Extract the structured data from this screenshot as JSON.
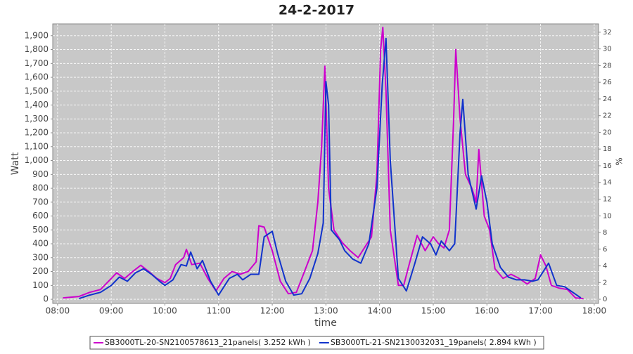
{
  "chart_data": {
    "type": "line",
    "title": "24-2-2017",
    "x_label": "time",
    "y_label": "Watt",
    "y2_label": "%",
    "xlim": [
      7.91,
      18.08
    ],
    "ylim": [
      -30,
      1985
    ],
    "y2lim": [
      -0.5,
      33
    ],
    "grid": true,
    "legend": "bottom",
    "xticks": [
      {
        "value": 8,
        "label": "08:00"
      },
      {
        "value": 9,
        "label": "09:00"
      },
      {
        "value": 10,
        "label": "10:00"
      },
      {
        "value": 11,
        "label": "11:00"
      },
      {
        "value": 12,
        "label": "12:00"
      },
      {
        "value": 13,
        "label": "13:00"
      },
      {
        "value": 14,
        "label": "14:00"
      },
      {
        "value": 15,
        "label": "15:00"
      },
      {
        "value": 16,
        "label": "16:00"
      },
      {
        "value": 17,
        "label": "17:00"
      },
      {
        "value": 18,
        "label": "18:00"
      }
    ],
    "yticks": [
      0,
      100,
      200,
      300,
      400,
      500,
      600,
      700,
      800,
      900,
      {
        "value": 1000,
        "label": "1,000"
      },
      {
        "value": 1100,
        "label": "1,100"
      },
      {
        "value": 1200,
        "label": "1,200"
      },
      {
        "value": 1300,
        "label": "1,300"
      },
      {
        "value": 1400,
        "label": "1,400"
      },
      {
        "value": 1500,
        "label": "1,500"
      },
      {
        "value": 1600,
        "label": "1,600"
      },
      {
        "value": 1700,
        "label": "1,700"
      },
      {
        "value": 1800,
        "label": "1,800"
      },
      {
        "value": 1900,
        "label": "1,900"
      }
    ],
    "y2ticks": [
      0,
      2,
      4,
      6,
      8,
      10,
      12,
      14,
      16,
      18,
      20,
      22,
      24,
      26,
      28,
      30,
      32
    ],
    "series": [
      {
        "name": "SB3000TL-20-SN2100578613_21panels( 3.252 kWh )",
        "color": "#cc00cc",
        "x": [
          8.1,
          8.25,
          8.4,
          8.6,
          8.8,
          9.0,
          9.1,
          9.25,
          9.4,
          9.55,
          9.7,
          9.85,
          10.0,
          10.1,
          10.2,
          10.35,
          10.4,
          10.5,
          10.65,
          10.8,
          10.95,
          11.1,
          11.25,
          11.4,
          11.55,
          11.7,
          11.75,
          11.85,
          12.0,
          12.15,
          12.3,
          12.45,
          12.6,
          12.75,
          12.85,
          12.92,
          12.98,
          13.05,
          13.15,
          13.3,
          13.45,
          13.6,
          13.75,
          13.85,
          13.95,
          14.02,
          14.06,
          14.12,
          14.2,
          14.35,
          14.45,
          14.55,
          14.7,
          14.85,
          15.0,
          15.1,
          15.2,
          15.3,
          15.38,
          15.42,
          15.5,
          15.6,
          15.72,
          15.8,
          15.85,
          15.95,
          16.05,
          16.15,
          16.3,
          16.45,
          16.6,
          16.75,
          16.9,
          17.0,
          17.1,
          17.2,
          17.35,
          17.5,
          17.65,
          17.8
        ],
        "values": [
          10,
          15,
          20,
          50,
          70,
          150,
          190,
          150,
          200,
          245,
          200,
          150,
          120,
          150,
          250,
          300,
          360,
          250,
          260,
          150,
          60,
          150,
          200,
          180,
          200,
          270,
          530,
          520,
          350,
          130,
          40,
          50,
          200,
          350,
          700,
          1100,
          1680,
          800,
          500,
          410,
          350,
          300,
          390,
          450,
          900,
          1800,
          1960,
          1500,
          500,
          100,
          100,
          250,
          460,
          350,
          450,
          400,
          370,
          500,
          1300,
          1800,
          1300,
          900,
          800,
          700,
          1080,
          600,
          500,
          220,
          150,
          180,
          150,
          110,
          150,
          320,
          240,
          100,
          80,
          70,
          10,
          5
        ]
      },
      {
        "name": "SB3000TL-21-SN2130032031_19panels( 2.894 kWh )",
        "color": "#1133cc",
        "x": [
          8.4,
          8.6,
          8.8,
          9.0,
          9.15,
          9.3,
          9.45,
          9.6,
          9.75,
          9.9,
          10.0,
          10.15,
          10.3,
          10.4,
          10.48,
          10.6,
          10.7,
          10.85,
          11.0,
          11.2,
          11.35,
          11.45,
          11.6,
          11.75,
          11.85,
          12.0,
          12.1,
          12.25,
          12.4,
          12.55,
          12.7,
          12.85,
          12.95,
          13.0,
          13.05,
          13.1,
          13.25,
          13.35,
          13.5,
          13.65,
          13.8,
          13.95,
          14.05,
          14.12,
          14.2,
          14.35,
          14.5,
          14.65,
          14.8,
          14.95,
          15.05,
          15.15,
          15.3,
          15.4,
          15.5,
          15.55,
          15.65,
          15.8,
          15.9,
          16.0,
          16.1,
          16.25,
          16.4,
          16.55,
          16.7,
          16.85,
          16.95,
          17.05,
          17.15,
          17.3,
          17.45,
          17.6,
          17.75
        ],
        "values": [
          5,
          30,
          50,
          100,
          160,
          130,
          190,
          220,
          180,
          130,
          100,
          140,
          250,
          240,
          340,
          220,
          280,
          130,
          30,
          150,
          180,
          140,
          180,
          180,
          450,
          490,
          330,
          130,
          30,
          40,
          150,
          330,
          550,
          1570,
          1400,
          500,
          430,
          350,
          290,
          260,
          400,
          800,
          1550,
          1880,
          1000,
          150,
          60,
          250,
          450,
          400,
          320,
          420,
          350,
          400,
          1200,
          1440,
          900,
          650,
          890,
          700,
          400,
          230,
          160,
          140,
          140,
          130,
          140,
          200,
          260,
          100,
          90,
          50,
          10
        ]
      }
    ]
  }
}
